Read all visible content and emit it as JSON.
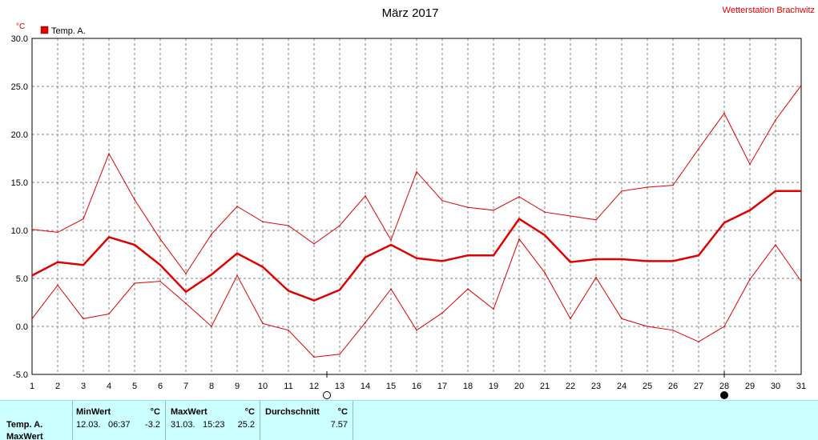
{
  "title": "März 2017",
  "station": "Wetterstation Brachwitz",
  "unit_label": "°C",
  "colors": {
    "series": "#e00000",
    "grid": "#808080",
    "panel": "#ccffff"
  },
  "chart_data": {
    "type": "line",
    "title": "März 2017",
    "ylabel": "°C",
    "xlabel": "",
    "ylim": [
      -5,
      30
    ],
    "yticks": [
      "30.0",
      "25.0",
      "20.0",
      "15.0",
      "10.0",
      "5.0",
      "0.0",
      "-5.0"
    ],
    "x": [
      1,
      2,
      3,
      4,
      5,
      6,
      7,
      8,
      9,
      10,
      11,
      12,
      13,
      14,
      15,
      16,
      17,
      18,
      19,
      20,
      21,
      22,
      23,
      24,
      25,
      26,
      27,
      28,
      29,
      30,
      31
    ],
    "grid": true,
    "legend": {
      "position": "top-left",
      "label": "Temp. A."
    },
    "series": [
      {
        "name": "Temp. A.",
        "role": "max",
        "values": [
          10.1,
          9.8,
          11.2,
          18.0,
          13.2,
          9.1,
          5.5,
          9.6,
          12.5,
          10.9,
          10.5,
          8.6,
          10.5,
          13.6,
          9.0,
          16.1,
          13.1,
          12.4,
          12.1,
          13.5,
          11.9,
          11.5,
          11.1,
          14.1,
          14.5,
          14.7,
          18.5,
          22.2,
          16.9,
          21.5,
          25.1
        ]
      },
      {
        "name": "Temp. A.",
        "role": "avg",
        "values": [
          5.3,
          6.7,
          6.4,
          9.3,
          8.5,
          6.4,
          3.6,
          5.4,
          7.6,
          6.2,
          3.7,
          2.7,
          3.8,
          7.2,
          8.5,
          7.1,
          6.8,
          7.4,
          7.4,
          11.2,
          9.5,
          6.7,
          7.0,
          7.0,
          6.8,
          6.8,
          7.4,
          10.8,
          12.1,
          14.1,
          14.1
        ]
      },
      {
        "name": "Temp. A.",
        "role": "min",
        "values": [
          0.8,
          4.3,
          0.8,
          1.3,
          4.5,
          4.7,
          2.4,
          0.0,
          5.3,
          0.3,
          -0.4,
          -3.2,
          -2.9,
          0.4,
          3.9,
          -0.4,
          1.4,
          3.9,
          1.8,
          9.1,
          5.6,
          0.8,
          5.1,
          0.8,
          0.0,
          -0.4,
          -1.6,
          0.0,
          4.9,
          8.5,
          4.7
        ]
      }
    ],
    "markers": [
      {
        "day": 12.5,
        "kind": "new-moon"
      },
      {
        "day": 28,
        "kind": "full-moon"
      }
    ]
  },
  "stats": {
    "row_label": "Temp. A.",
    "row_label_2": "MaxWert",
    "min_header": "MinWert",
    "min_unit": "°C",
    "min_date": "12.03.",
    "min_time": "06:37",
    "min_value": "-3.2",
    "max_header": "MaxWert",
    "max_unit": "°C",
    "max_date": "31.03.",
    "max_time": "15:23",
    "max_value": "25.2",
    "avg_header": "Durchschnitt",
    "avg_unit": "°C",
    "avg_value": "7.57"
  }
}
